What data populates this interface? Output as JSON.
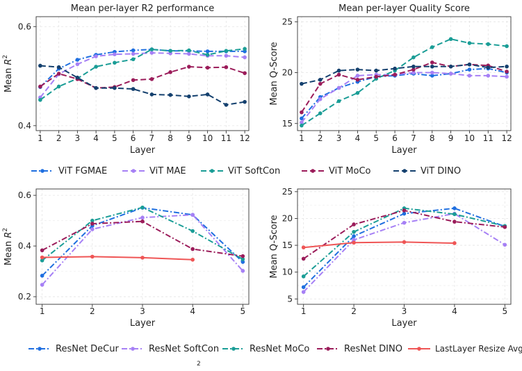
{
  "chart_data": [
    {
      "type": "line",
      "title": "Mean per-layer R2 performance",
      "xlabel": "Layer",
      "ylabel": "Mean R2",
      "x": [
        1,
        2,
        3,
        4,
        5,
        6,
        7,
        8,
        9,
        10,
        11,
        12
      ],
      "xticks": [
        "1",
        "2",
        "3",
        "4",
        "5",
        "6",
        "7",
        "8",
        "9",
        "10",
        "11",
        "12"
      ],
      "ylim": [
        0.39,
        0.62
      ],
      "yticks": [
        {
          "value": 0.4,
          "label": "0.4"
        },
        {
          "value": 0.6,
          "label": "0.6"
        }
      ],
      "grid": true,
      "series": [
        {
          "name": "ViT FGMAE",
          "color": "#1f6fe0",
          "dash": "8,3,2,3",
          "values": [
            0.478,
            0.515,
            0.533,
            0.543,
            0.549,
            0.552,
            0.554,
            0.551,
            0.551,
            0.55,
            0.55,
            0.55
          ]
        },
        {
          "name": "ViT MAE",
          "color": "#a680f5",
          "dash": "8,4",
          "values": [
            0.457,
            0.504,
            0.524,
            0.54,
            0.544,
            0.545,
            0.547,
            0.546,
            0.545,
            0.541,
            0.541,
            0.538
          ]
        },
        {
          "name": "ViT SoftCon",
          "color": "#1a9d96",
          "dash": "8,4",
          "values": [
            0.452,
            0.479,
            0.495,
            0.519,
            0.527,
            0.534,
            0.554,
            0.551,
            0.552,
            0.543,
            0.551,
            0.555
          ]
        },
        {
          "name": "ViT MoCo",
          "color": "#9b1c5a",
          "dash": "8,4",
          "values": [
            0.479,
            0.505,
            0.494,
            0.476,
            0.478,
            0.492,
            0.494,
            0.508,
            0.519,
            0.517,
            0.518,
            0.506
          ]
        },
        {
          "name": "ViT DINO",
          "color": "#14406e",
          "dash": "8,4",
          "values": [
            0.521,
            0.518,
            0.497,
            0.476,
            0.476,
            0.474,
            0.463,
            0.462,
            0.459,
            0.463,
            0.442,
            0.448
          ]
        }
      ]
    },
    {
      "type": "line",
      "title": "Mean per-layer Quality Score",
      "xlabel": "Layer",
      "ylabel": "Mean Q-Score",
      "x": [
        1,
        2,
        3,
        4,
        5,
        6,
        7,
        8,
        9,
        10,
        11,
        12
      ],
      "xticks": [
        "1",
        "2",
        "3",
        "4",
        "5",
        "6",
        "7",
        "8",
        "9",
        "10",
        "11",
        "12"
      ],
      "ylim": [
        14.3,
        25.5
      ],
      "yticks": [
        {
          "value": 15,
          "label": "15"
        },
        {
          "value": 20,
          "label": "20"
        },
        {
          "value": 25,
          "label": "25"
        }
      ],
      "grid": true,
      "series": [
        {
          "name": "ViT FGMAE",
          "color": "#1f6fe0",
          "dash": "8,3,2,3",
          "values": [
            15.5,
            17.6,
            18.5,
            19.1,
            19.6,
            19.7,
            19.9,
            19.7,
            19.9,
            20.3,
            20.4,
            20.0
          ]
        },
        {
          "name": "ViT MAE",
          "color": "#a680f5",
          "dash": "8,4",
          "values": [
            15.1,
            17.4,
            18.5,
            19.7,
            19.8,
            19.8,
            20.0,
            20.0,
            19.9,
            19.7,
            19.7,
            19.6
          ]
        },
        {
          "name": "ViT SoftCon",
          "color": "#1a9d96",
          "dash": "8,4",
          "values": [
            14.8,
            16.0,
            17.2,
            18.0,
            19.4,
            20.2,
            21.5,
            22.5,
            23.3,
            22.9,
            22.8,
            22.6
          ]
        },
        {
          "name": "ViT MoCo",
          "color": "#9b1c5a",
          "dash": "8,4",
          "values": [
            16.1,
            18.9,
            19.8,
            19.3,
            19.6,
            19.8,
            20.3,
            21.0,
            20.6,
            20.8,
            20.7,
            20.1
          ]
        },
        {
          "name": "ViT DINO",
          "color": "#14406e",
          "dash": "8,4",
          "values": [
            18.9,
            19.3,
            20.2,
            20.3,
            20.2,
            20.4,
            20.6,
            20.6,
            20.6,
            20.8,
            20.5,
            20.6
          ]
        }
      ]
    },
    {
      "type": "line",
      "title": "",
      "xlabel": "Layer",
      "ylabel": "Mean R2",
      "x": [
        1,
        2,
        3,
        4,
        5
      ],
      "xticks": [
        "1",
        "2",
        "3",
        "4",
        "5"
      ],
      "xlim": [
        0.88,
        5.12
      ],
      "ylim": [
        0.17,
        0.625
      ],
      "yticks": [
        {
          "value": 0.2,
          "label": "0.2"
        },
        {
          "value": 0.4,
          "label": "0.4"
        },
        {
          "value": 0.6,
          "label": "0.6"
        }
      ],
      "grid": true,
      "series": [
        {
          "name": "ResNet DeCur",
          "color": "#1f6fe0",
          "dash": "8,3,2,3",
          "values": [
            0.283,
            0.48,
            0.551,
            0.523,
            0.337
          ]
        },
        {
          "name": "ResNet SoftCon",
          "color": "#a680f5",
          "dash": "8,3,2,3",
          "values": [
            0.247,
            0.466,
            0.512,
            0.523,
            0.302
          ]
        },
        {
          "name": "ResNet MoCo",
          "color": "#1a9d96",
          "dash": "8,3,2,3",
          "values": [
            0.343,
            0.5,
            0.552,
            0.459,
            0.348
          ]
        },
        {
          "name": "ResNet DINO",
          "color": "#9b1c5a",
          "dash": "8,3,2,3",
          "values": [
            0.383,
            0.488,
            0.497,
            0.388,
            0.36
          ]
        },
        {
          "name": "LastLayer Resize Avg",
          "color": "#ef5555",
          "dash": "",
          "values": [
            0.355,
            0.358,
            0.354,
            0.346,
            null
          ]
        }
      ]
    },
    {
      "type": "line",
      "title": "",
      "xlabel": "Layer",
      "ylabel": "Mean Q-Score",
      "x": [
        1,
        2,
        3,
        4,
        5
      ],
      "xticks": [
        "1",
        "2",
        "3",
        "4",
        "5"
      ],
      "xlim": [
        0.88,
        5.12
      ],
      "ylim": [
        4.0,
        25.5
      ],
      "yticks": [
        {
          "value": 5,
          "label": "5"
        },
        {
          "value": 10,
          "label": "10"
        },
        {
          "value": 15,
          "label": "15"
        },
        {
          "value": 20,
          "label": "20"
        },
        {
          "value": 25,
          "label": "25"
        }
      ],
      "grid": true,
      "series": [
        {
          "name": "ResNet DeCur",
          "color": "#1f6fe0",
          "dash": "8,3,2,3",
          "values": [
            7.2,
            16.7,
            20.9,
            21.9,
            18.5
          ]
        },
        {
          "name": "ResNet SoftCon",
          "color": "#a680f5",
          "dash": "8,3,2,3",
          "values": [
            6.3,
            16.0,
            19.2,
            20.9,
            15.1
          ]
        },
        {
          "name": "ResNet MoCo",
          "color": "#1a9d96",
          "dash": "8,3,2,3",
          "values": [
            9.2,
            17.5,
            21.9,
            20.8,
            18.6
          ]
        },
        {
          "name": "ResNet DINO",
          "color": "#9b1c5a",
          "dash": "8,3,2,3",
          "values": [
            12.5,
            18.9,
            21.5,
            19.4,
            18.4
          ]
        },
        {
          "name": "LastLayer Resize Avg",
          "color": "#ef5555",
          "dash": "",
          "values": [
            14.6,
            15.5,
            15.6,
            15.4,
            null
          ]
        }
      ]
    }
  ],
  "legends": {
    "top": [
      {
        "label": "ViT FGMAE",
        "color": "#1f6fe0",
        "dash": "8,3,2,3"
      },
      {
        "label": "ViT MAE",
        "color": "#a680f5",
        "dash": "8,4"
      },
      {
        "label": "ViT SoftCon",
        "color": "#1a9d96",
        "dash": "8,4"
      },
      {
        "label": "ViT MoCo",
        "color": "#9b1c5a",
        "dash": "8,4"
      },
      {
        "label": "ViT DINO",
        "color": "#14406e",
        "dash": "8,4"
      }
    ],
    "bottom": [
      {
        "label": "ResNet DeCur",
        "color": "#1f6fe0",
        "dash": "8,3,2,3"
      },
      {
        "label": "ResNet SoftCon",
        "color": "#a680f5",
        "dash": "8,3,2,3"
      },
      {
        "label": "ResNet MoCo",
        "color": "#1a9d96",
        "dash": "8,3,2,3"
      },
      {
        "label": "ResNet DINO",
        "color": "#9b1c5a",
        "dash": "8,3,2,3"
      },
      {
        "label": "LastLayer Resize Avg",
        "color": "#ef5555",
        "dash": ""
      }
    ]
  },
  "footer_glyph": "2"
}
